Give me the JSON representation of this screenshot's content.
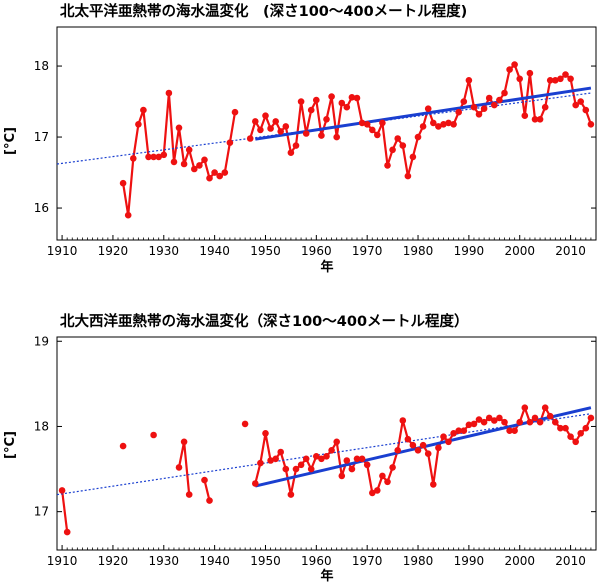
{
  "chart_data": [
    {
      "type": "line",
      "title": "北太平洋亜熱帯の海水温変化　(深さ100〜400メートル程度)",
      "xlabel": "年",
      "ylabel": "[°C]",
      "xlim": [
        1909,
        2015
      ],
      "ylim": [
        15.55,
        18.55
      ],
      "xticks": [
        1910,
        1920,
        1930,
        1940,
        1950,
        1960,
        1970,
        1980,
        1990,
        2000,
        2010
      ],
      "yticks": [
        16,
        17,
        18
      ],
      "grid": false,
      "legend": "none",
      "colors": {
        "observed": "#ee1111",
        "trend_recent": "#1a3fd0",
        "trend_full": "#1a3fd0"
      },
      "series": [
        {
          "kind": "observed",
          "x": [
            1922,
            1923,
            1924,
            1925,
            1926,
            1927,
            1928,
            1929,
            1930,
            1931,
            1932,
            1933,
            1934,
            1935,
            1936,
            1937,
            1938,
            1939,
            1940,
            1941,
            1942,
            1943,
            1944,
            1945,
            1947,
            1948,
            1949,
            1950,
            1951,
            1952,
            1953,
            1954,
            1955,
            1956,
            1957,
            1958,
            1959,
            1960,
            1961,
            1962,
            1963,
            1964,
            1965,
            1966,
            1967,
            1968,
            1969,
            1970,
            1971,
            1972,
            1973,
            1974,
            1975,
            1976,
            1977,
            1978,
            1979,
            1980,
            1981,
            1982,
            1983,
            1984,
            1985,
            1986,
            1987,
            1988,
            1989,
            1990,
            1991,
            1992,
            1993,
            1994,
            1995,
            1996,
            1997,
            1998,
            1999,
            2000,
            2001,
            2002,
            2003,
            2004,
            2005,
            2006,
            2007,
            2008,
            2009,
            2010,
            2011,
            2012,
            2013,
            2014
          ],
          "y": [
            16.35,
            15.9,
            16.7,
            17.18,
            17.38,
            16.72,
            16.72,
            16.72,
            16.75,
            17.62,
            16.65,
            17.13,
            16.62,
            16.82,
            16.55,
            16.6,
            16.68,
            16.42,
            16.5,
            16.45,
            16.5,
            16.92,
            17.35,
            null,
            16.98,
            17.22,
            17.1,
            17.3,
            17.12,
            17.22,
            17.08,
            17.15,
            16.78,
            16.88,
            17.5,
            17.05,
            17.38,
            17.52,
            17.02,
            17.25,
            17.57,
            17.0,
            17.48,
            17.42,
            17.56,
            17.55,
            17.2,
            17.18,
            17.1,
            17.03,
            17.2,
            16.6,
            16.82,
            16.98,
            16.88,
            16.45,
            16.72,
            17.0,
            17.15,
            17.4,
            17.2,
            17.15,
            17.18,
            17.2,
            17.18,
            17.35,
            17.5,
            17.8,
            17.42,
            17.32,
            17.4,
            17.55,
            17.45,
            17.52,
            17.62,
            17.95,
            18.02,
            17.82,
            17.3,
            17.9,
            17.25,
            17.25,
            17.42,
            17.8,
            17.8,
            17.82,
            17.88,
            17.82,
            17.45,
            17.5,
            17.38,
            17.18
          ]
        },
        {
          "kind": "trend_recent",
          "x": [
            1948,
            2014
          ],
          "y": [
            16.97,
            17.69
          ]
        },
        {
          "kind": "trend_full",
          "x": [
            1909,
            2014
          ],
          "y": [
            16.62,
            17.62
          ]
        }
      ]
    },
    {
      "type": "line",
      "title": "北大西洋亜熱帯の海水温変化（深さ100〜400メートル程度）",
      "xlabel": "年",
      "ylabel": "[°C]",
      "xlim": [
        1909,
        2015
      ],
      "ylim": [
        16.55,
        19.05
      ],
      "xticks": [
        1910,
        1920,
        1930,
        1940,
        1950,
        1960,
        1970,
        1980,
        1990,
        2000,
        2010
      ],
      "yticks": [
        17,
        18,
        19
      ],
      "grid": false,
      "legend": "none",
      "colors": {
        "observed": "#ee1111",
        "trend_recent": "#1a3fd0",
        "trend_full": "#1a3fd0"
      },
      "series": [
        {
          "kind": "observed",
          "x": [
            1910,
            1911,
            1912,
            1913,
            1914,
            1915,
            1916,
            1917,
            1918,
            1919,
            1920,
            1921,
            1922,
            1923,
            1924,
            1925,
            1926,
            1927,
            1928,
            1929,
            1930,
            1931,
            1932,
            1933,
            1934,
            1935,
            1936,
            1937,
            1938,
            1939,
            1940,
            1941,
            1942,
            1943,
            1944,
            1945,
            1946,
            1947,
            1948,
            1949,
            1950,
            1951,
            1952,
            1953,
            1954,
            1955,
            1956,
            1957,
            1958,
            1959,
            1960,
            1961,
            1962,
            1963,
            1964,
            1965,
            1966,
            1967,
            1968,
            1969,
            1970,
            1971,
            1972,
            1973,
            1974,
            1975,
            1976,
            1977,
            1978,
            1979,
            1980,
            1981,
            1982,
            1983,
            1984,
            1985,
            1986,
            1987,
            1988,
            1989,
            1990,
            1991,
            1992,
            1993,
            1994,
            1995,
            1996,
            1997,
            1998,
            1999,
            2000,
            2001,
            2002,
            2003,
            2004,
            2005,
            2006,
            2007,
            2008,
            2009,
            2010,
            2011,
            2012,
            2013,
            2014
          ],
          "y": [
            17.25,
            16.76,
            null,
            null,
            null,
            null,
            null,
            null,
            null,
            null,
            null,
            null,
            17.77,
            null,
            null,
            null,
            null,
            null,
            17.9,
            null,
            null,
            null,
            null,
            17.52,
            17.82,
            17.2,
            null,
            null,
            17.37,
            17.13,
            null,
            null,
            null,
            null,
            null,
            null,
            18.03,
            null,
            17.33,
            17.57,
            17.92,
            17.6,
            17.62,
            17.7,
            17.5,
            17.2,
            17.5,
            17.55,
            17.62,
            17.5,
            17.65,
            17.62,
            17.65,
            17.72,
            17.82,
            17.42,
            17.6,
            17.5,
            17.62,
            17.62,
            17.55,
            17.22,
            17.25,
            17.42,
            17.35,
            17.52,
            17.72,
            18.07,
            17.85,
            17.78,
            17.72,
            17.78,
            17.68,
            17.32,
            17.75,
            17.88,
            17.82,
            17.92,
            17.95,
            17.95,
            18.02,
            18.03,
            18.08,
            18.05,
            18.1,
            18.07,
            18.1,
            18.05,
            17.95,
            17.95,
            18.05,
            18.22,
            18.05,
            18.1,
            18.05,
            18.22,
            18.12,
            18.05,
            17.98,
            17.98,
            17.88,
            17.82,
            17.92,
            17.98,
            18.1
          ]
        },
        {
          "kind": "trend_recent",
          "x": [
            1948,
            2014
          ],
          "y": [
            17.3,
            18.22
          ]
        },
        {
          "kind": "trend_full",
          "x": [
            1909,
            2014
          ],
          "y": [
            17.2,
            18.15
          ]
        }
      ]
    }
  ]
}
